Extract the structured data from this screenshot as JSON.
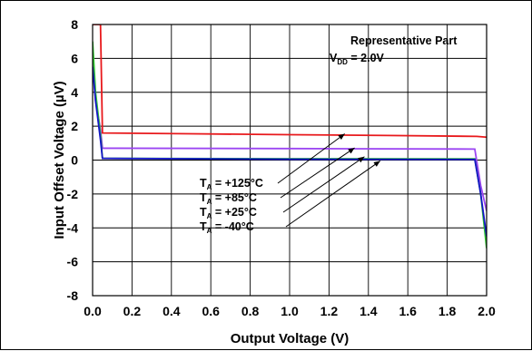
{
  "chart_data": {
    "type": "line",
    "xlabel": "Output Voltage (V)",
    "ylabel": "Input Offset Voltage (µV)",
    "xlim": [
      0.0,
      2.0
    ],
    "ylim": [
      -8,
      8
    ],
    "x_ticks": [
      0.0,
      0.2,
      0.4,
      0.6,
      0.8,
      1.0,
      1.2,
      1.4,
      1.6,
      1.8,
      2.0
    ],
    "x_tick_labels": [
      "0.0",
      "0.2",
      "0.4",
      "0.6",
      "0.8",
      "1.0",
      "1.2",
      "1.4",
      "1.6",
      "1.8",
      "2.0"
    ],
    "y_ticks": [
      -8,
      -6,
      -4,
      -2,
      0,
      2,
      4,
      6,
      8
    ],
    "y_tick_labels": [
      "-8",
      "-6",
      "-4",
      "-2",
      "0",
      "2",
      "4",
      "6",
      "8"
    ],
    "grid": true,
    "annotation": {
      "line1": "Representative Part",
      "vdd_prefix": "V",
      "vdd_sub": "DD",
      "vdd_value": " = 2.0V"
    },
    "series": [
      {
        "name": "TA = +125°C",
        "label_prefix": "T",
        "label_sub": "A",
        "label_value": " = +125°C",
        "color": "#e8191c",
        "x": [
          0.0,
          0.015,
          0.04,
          0.05,
          0.5,
          1.0,
          1.5,
          1.95,
          2.0
        ],
        "y": [
          8.0,
          8.0,
          8.0,
          1.6,
          1.55,
          1.5,
          1.45,
          1.4,
          1.35
        ],
        "arrow_to": [
          1.28,
          1.55
        ]
      },
      {
        "name": "TA = +85°C",
        "label_prefix": "T",
        "label_sub": "A",
        "label_value": " =  +85°C",
        "color": "#9b45f2",
        "x": [
          0.0,
          0.015,
          0.04,
          0.05,
          1.0,
          1.94,
          1.97,
          2.0
        ],
        "y": [
          6.0,
          3.5,
          1.8,
          0.7,
          0.68,
          0.65,
          -1.5,
          -3.0
        ],
        "arrow_to": [
          1.33,
          0.72
        ]
      },
      {
        "name": "TA = +25°C",
        "label_prefix": "T",
        "label_sub": "A",
        "label_value": " =  +25°C",
        "color": "#2ec82e",
        "x": [
          0.0,
          0.015,
          0.04,
          0.05,
          1.0,
          1.94,
          1.97,
          2.0
        ],
        "y": [
          7.0,
          4.0,
          1.5,
          0.1,
          0.08,
          0.07,
          -2.0,
          -5.2
        ],
        "arrow_to": [
          1.38,
          0.2
        ]
      },
      {
        "name": "TA = -40°C",
        "label_prefix": "T",
        "label_sub": "A",
        "label_value": " =   -40°C",
        "color": "#1414c8",
        "x": [
          0.0,
          0.015,
          0.04,
          0.05,
          1.0,
          1.94,
          1.97,
          2.0
        ],
        "y": [
          5.5,
          3.5,
          1.2,
          0.1,
          0.05,
          0.04,
          -2.0,
          -4.5
        ],
        "arrow_to": [
          1.46,
          -0.05
        ]
      }
    ]
  }
}
